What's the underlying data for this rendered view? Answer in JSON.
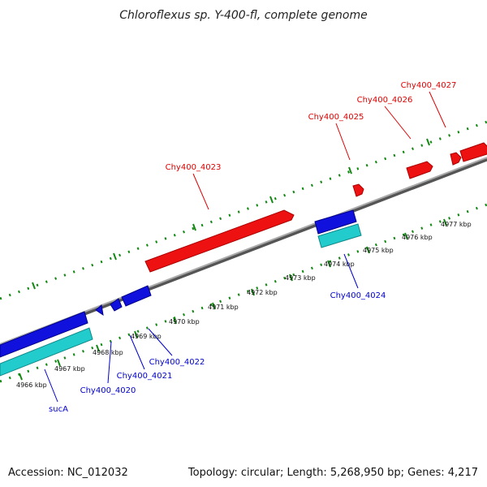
{
  "header": {
    "title": "Chloroflexus sp. Y-400-fl, complete genome"
  },
  "footer": {
    "accession": "Accession: NC_012032",
    "summary": "Topology: circular; Length: 5,268,950 bp; Genes: 4,217"
  },
  "colors": {
    "forward_gene": "#ee1111",
    "reverse_gene": "#1111dd",
    "reverse_cds": "#22cccc",
    "backbone": "#888888",
    "ticks": "#118811"
  },
  "ruler": {
    "unit": "kbp",
    "labels": [
      "4966 kbp",
      "4967 kbp",
      "4968 kbp",
      "4969 kbp",
      "4970 kbp",
      "4971 kbp",
      "4972 kbp",
      "4973 kbp",
      "4974 kbp",
      "4975 kbp",
      "4976 kbp",
      "4977 kbp"
    ]
  },
  "genes": {
    "forward": [
      "Chy400_4023",
      "Chy400_4025",
      "Chy400_4026",
      "Chy400_4027"
    ],
    "reverse": [
      "sucA",
      "Chy400_4020",
      "Chy400_4021",
      "Chy400_4022",
      "Chy400_4024"
    ]
  }
}
